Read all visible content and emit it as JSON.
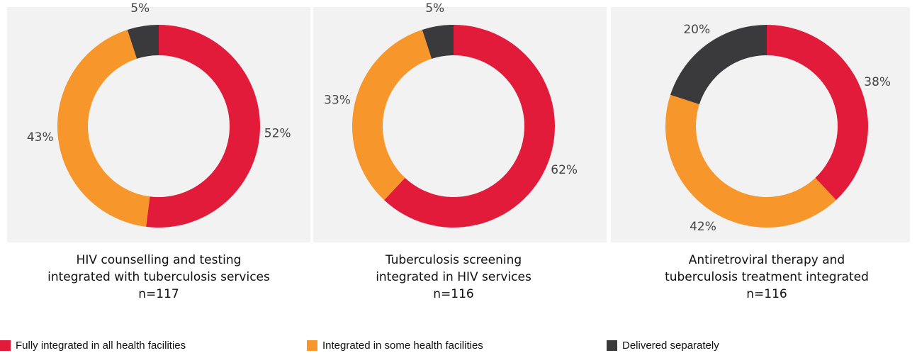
{
  "chart_data": [
    {
      "type": "pie",
      "title": [
        "HIV counselling and testing",
        "integrated with tuberculosis services"
      ],
      "subtitle": "n=117",
      "categories": [
        "Fully integrated in all health facilities",
        "Integrated in some health facilities",
        "Delivered separately"
      ],
      "values": [
        52,
        43,
        5
      ],
      "value_labels": [
        "52%",
        "43%",
        "5%"
      ],
      "colors": [
        "#e31b3b",
        "#f7962b",
        "#3a3a3c"
      ]
    },
    {
      "type": "pie",
      "title": [
        "Tuberculosis screening",
        "integrated in HIV services"
      ],
      "subtitle": "n=116",
      "categories": [
        "Fully integrated in all health facilities",
        "Integrated in some health facilities",
        "Delivered separately"
      ],
      "values": [
        62,
        33,
        5
      ],
      "value_labels": [
        "62%",
        "33%",
        "5%"
      ],
      "colors": [
        "#e31b3b",
        "#f7962b",
        "#3a3a3c"
      ]
    },
    {
      "type": "pie",
      "title": [
        "Antiretroviral therapy and",
        "tuberculosis treatment integrated"
      ],
      "subtitle": "n=116",
      "categories": [
        "Fully integrated in all health facilities",
        "Integrated in some health facilities",
        "Delivered separately"
      ],
      "values": [
        38,
        42,
        20
      ],
      "value_labels": [
        "38%",
        "42%",
        "20%"
      ],
      "colors": [
        "#e31b3b",
        "#f7962b",
        "#3a3a3c"
      ]
    }
  ]
}
